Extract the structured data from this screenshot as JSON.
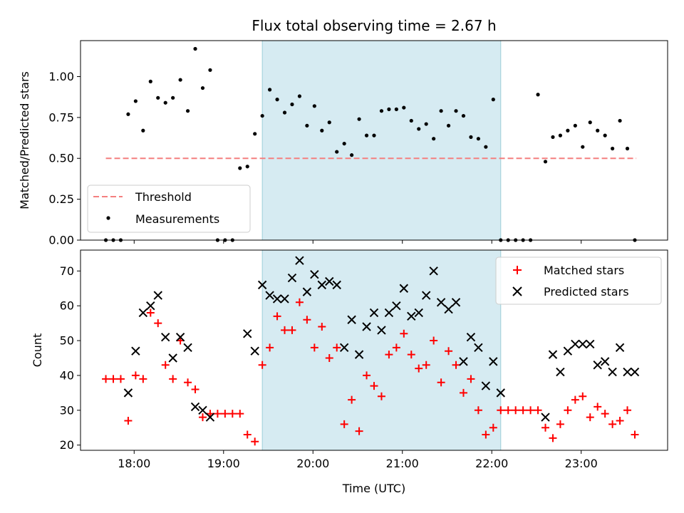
{
  "chart_data": [
    {
      "type": "scatter",
      "title": "Flux total observing time = 2.67 h",
      "ylabel": "Matched/Predicted stars",
      "xlim": [
        "17:24",
        "23:58"
      ],
      "ylim": [
        0,
        1.22
      ],
      "yticks": [
        "0.00",
        "0.25",
        "0.50",
        "0.75",
        "1.00"
      ],
      "shaded_region": [
        "19:26",
        "22:06"
      ],
      "threshold": {
        "name": "Threshold",
        "value": 0.5,
        "x_start": "17:41",
        "x_end": "23:37",
        "color": "#f47f7f"
      },
      "series": [
        {
          "name": "Measurements",
          "color": "#000000",
          "x": [
            "17:41",
            "17:46",
            "17:51",
            "17:56",
            "18:01",
            "18:06",
            "18:11",
            "18:16",
            "18:21",
            "18:26",
            "18:31",
            "18:36",
            "18:41",
            "18:46",
            "18:51",
            "18:56",
            "19:01",
            "19:06",
            "19:11",
            "19:16",
            "19:21",
            "19:26",
            "19:31",
            "19:36",
            "19:41",
            "19:46",
            "19:51",
            "19:56",
            "20:01",
            "20:06",
            "20:11",
            "20:16",
            "20:21",
            "20:26",
            "20:31",
            "20:36",
            "20:41",
            "20:46",
            "20:51",
            "20:56",
            "21:01",
            "21:06",
            "21:11",
            "21:16",
            "21:21",
            "21:26",
            "21:31",
            "21:36",
            "21:41",
            "21:46",
            "21:51",
            "21:56",
            "22:01",
            "22:06",
            "22:11",
            "22:16",
            "22:21",
            "22:26",
            "22:31",
            "22:36",
            "22:41",
            "22:46",
            "22:51",
            "22:56",
            "23:01",
            "23:06",
            "23:11",
            "23:16",
            "23:21",
            "23:26",
            "23:31",
            "23:36"
          ],
          "y": [
            0.0,
            0.0,
            0.0,
            0.77,
            0.85,
            0.67,
            0.97,
            0.87,
            0.84,
            0.87,
            0.98,
            0.79,
            1.17,
            0.93,
            1.04,
            0.0,
            0.0,
            0.0,
            0.44,
            0.45,
            0.65,
            0.76,
            0.92,
            0.86,
            0.78,
            0.83,
            0.88,
            0.7,
            0.82,
            0.67,
            0.72,
            0.54,
            0.59,
            0.52,
            0.74,
            0.64,
            0.64,
            0.79,
            0.8,
            0.8,
            0.81,
            0.73,
            0.68,
            0.71,
            0.62,
            0.79,
            0.7,
            0.79,
            0.76,
            0.63,
            0.62,
            0.57,
            0.86,
            0.0,
            0.0,
            0.0,
            0.0,
            0.0,
            0.89,
            0.48,
            0.63,
            0.64,
            0.67,
            0.7,
            0.57,
            0.72,
            0.67,
            0.64,
            0.56,
            0.73,
            0.56,
            0.0
          ]
        }
      ],
      "legend": {
        "position": "lower-left",
        "entries": [
          "Threshold",
          "Measurements"
        ]
      }
    },
    {
      "type": "scatter",
      "xlabel": "Time (UTC)",
      "ylabel": "Count",
      "xlim": [
        "17:24",
        "23:58"
      ],
      "ylim": [
        18.5,
        76
      ],
      "xticks": [
        "18:00",
        "19:00",
        "20:00",
        "21:00",
        "22:00",
        "23:00"
      ],
      "yticks": [
        "20",
        "30",
        "40",
        "50",
        "60",
        "70"
      ],
      "shaded_region": [
        "19:26",
        "22:06"
      ],
      "series": [
        {
          "name": "Matched stars",
          "marker": "plus",
          "color": "#ff0000",
          "x": [
            "17:41",
            "17:46",
            "17:51",
            "17:56",
            "18:01",
            "18:06",
            "18:11",
            "18:16",
            "18:21",
            "18:26",
            "18:31",
            "18:36",
            "18:41",
            "18:46",
            "18:51",
            "18:56",
            "19:01",
            "19:06",
            "19:11",
            "19:16",
            "19:21",
            "19:26",
            "19:31",
            "19:36",
            "19:41",
            "19:46",
            "19:51",
            "19:56",
            "20:01",
            "20:06",
            "20:11",
            "20:16",
            "20:21",
            "20:26",
            "20:31",
            "20:36",
            "20:41",
            "20:46",
            "20:51",
            "20:56",
            "21:01",
            "21:06",
            "21:11",
            "21:16",
            "21:21",
            "21:26",
            "21:31",
            "21:36",
            "21:41",
            "21:46",
            "21:51",
            "21:56",
            "22:01",
            "22:06",
            "22:11",
            "22:16",
            "22:21",
            "22:26",
            "22:31",
            "22:36",
            "22:41",
            "22:46",
            "22:51",
            "22:56",
            "23:01",
            "23:06",
            "23:11",
            "23:16",
            "23:21",
            "23:26",
            "23:31",
            "23:36"
          ],
          "y": [
            39,
            39,
            39,
            27,
            40,
            39,
            58,
            55,
            43,
            39,
            50,
            38,
            36,
            28,
            29,
            29,
            29,
            29,
            29,
            23,
            21,
            43,
            48,
            57,
            53,
            53,
            61,
            56,
            48,
            54,
            45,
            48,
            26,
            33,
            24,
            40,
            37,
            34,
            46,
            48,
            52,
            46,
            42,
            43,
            50,
            38,
            47,
            43,
            35,
            39,
            30,
            23,
            25,
            30,
            30,
            30,
            30,
            30,
            30,
            25,
            22,
            26,
            30,
            33,
            34,
            28,
            31,
            29,
            26,
            27,
            30,
            23
          ]
        },
        {
          "name": "Predicted stars",
          "marker": "x",
          "color": "#000000",
          "x": [
            "17:56",
            "18:01",
            "18:06",
            "18:11",
            "18:16",
            "18:21",
            "18:26",
            "18:31",
            "18:36",
            "18:41",
            "18:46",
            "18:51",
            "19:16",
            "19:21",
            "19:26",
            "19:31",
            "19:36",
            "19:41",
            "19:46",
            "19:51",
            "19:56",
            "20:01",
            "20:06",
            "20:11",
            "20:16",
            "20:21",
            "20:26",
            "20:31",
            "20:36",
            "20:41",
            "20:46",
            "20:51",
            "20:56",
            "21:01",
            "21:06",
            "21:11",
            "21:16",
            "21:21",
            "21:26",
            "21:31",
            "21:36",
            "21:41",
            "21:46",
            "21:51",
            "21:56",
            "22:01",
            "22:06",
            "22:36",
            "22:41",
            "22:46",
            "22:51",
            "22:56",
            "23:01",
            "23:06",
            "23:11",
            "23:16",
            "23:21",
            "23:26",
            "23:31",
            "23:36"
          ],
          "y": [
            35,
            47,
            58,
            60,
            63,
            51,
            45,
            51,
            48,
            31,
            30,
            28,
            52,
            47,
            66,
            63,
            62,
            62,
            68,
            73,
            64,
            69,
            66,
            67,
            66,
            48,
            56,
            46,
            54,
            58,
            53,
            58,
            60,
            65,
            57,
            58,
            63,
            70,
            61,
            59,
            61,
            44,
            51,
            48,
            37,
            44,
            35,
            28,
            46,
            41,
            47,
            49,
            49,
            49,
            43,
            44,
            41,
            48,
            41,
            41
          ]
        }
      ],
      "legend": {
        "position": "top-right",
        "entries": [
          "Matched stars",
          "Predicted stars"
        ]
      }
    }
  ]
}
